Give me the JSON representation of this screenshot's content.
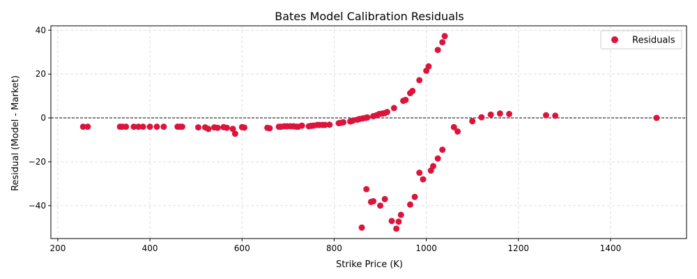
{
  "chart_data": {
    "type": "scatter",
    "title": "Bates Model Calibration Residuals",
    "xlabel": "Strike Price (K)",
    "ylabel": "Residual (Model - Market)",
    "xlim": [
      185,
      1565
    ],
    "ylim": [
      -55,
      42
    ],
    "xticks": [
      200,
      400,
      600,
      800,
      1000,
      1200,
      1400
    ],
    "yticks": [
      -40,
      -20,
      0,
      20,
      40
    ],
    "grid": true,
    "legend_position": "top-right",
    "reference_line": {
      "y": 0,
      "style": "dashed"
    },
    "colors": {
      "points": "#dc143c",
      "reference_line": "#000000",
      "grid": "#dddddd"
    },
    "series": [
      {
        "name": "Residuals",
        "points": [
          [
            255,
            -4
          ],
          [
            265,
            -4
          ],
          [
            335,
            -4
          ],
          [
            340,
            -4
          ],
          [
            348,
            -4
          ],
          [
            365,
            -4
          ],
          [
            375,
            -4
          ],
          [
            385,
            -4
          ],
          [
            400,
            -4
          ],
          [
            415,
            -4
          ],
          [
            430,
            -4
          ],
          [
            460,
            -4
          ],
          [
            465,
            -4
          ],
          [
            470,
            -4
          ],
          [
            505,
            -4.3
          ],
          [
            520,
            -4.3
          ],
          [
            527,
            -5
          ],
          [
            540,
            -4.3
          ],
          [
            547,
            -4.5
          ],
          [
            560,
            -4.2
          ],
          [
            567,
            -4.5
          ],
          [
            580,
            -5
          ],
          [
            585,
            -7.2
          ],
          [
            600,
            -4.2
          ],
          [
            605,
            -4.4
          ],
          [
            655,
            -4.5
          ],
          [
            660,
            -4.7
          ],
          [
            680,
            -4
          ],
          [
            685,
            -4
          ],
          [
            692,
            -3.8
          ],
          [
            698,
            -3.8
          ],
          [
            705,
            -3.8
          ],
          [
            712,
            -3.8
          ],
          [
            718,
            -4
          ],
          [
            722,
            -4
          ],
          [
            730,
            -3.5
          ],
          [
            745,
            -3.8
          ],
          [
            750,
            -3.6
          ],
          [
            755,
            -3.5
          ],
          [
            763,
            -3.2
          ],
          [
            768,
            -3.2
          ],
          [
            775,
            -3.2
          ],
          [
            780,
            -3.2
          ],
          [
            790,
            -3.1
          ],
          [
            810,
            -2.4
          ],
          [
            815,
            -2.2
          ],
          [
            820,
            -2
          ],
          [
            835,
            -1.6
          ],
          [
            840,
            -1.3
          ],
          [
            850,
            -0.8
          ],
          [
            855,
            -0.5
          ],
          [
            862,
            -0.2
          ],
          [
            868,
            0
          ],
          [
            872,
            0.2
          ],
          [
            885,
            0.8
          ],
          [
            892,
            1.2
          ],
          [
            898,
            1.8
          ],
          [
            905,
            2
          ],
          [
            910,
            2.2
          ],
          [
            915,
            2.7
          ],
          [
            930,
            4.5
          ],
          [
            950,
            7.8
          ],
          [
            955,
            8.2
          ],
          [
            965,
            11.3
          ],
          [
            970,
            12.3
          ],
          [
            985,
            17.2
          ],
          [
            1000,
            21.5
          ],
          [
            1005,
            23.5
          ],
          [
            1025,
            31
          ],
          [
            1035,
            34.5
          ],
          [
            1040,
            37.3
          ],
          [
            1060,
            -4.2
          ],
          [
            1068,
            -6.2
          ],
          [
            1100,
            -1.5
          ],
          [
            1120,
            0.3
          ],
          [
            1140,
            1.5
          ],
          [
            1160,
            2
          ],
          [
            1180,
            1.8
          ],
          [
            1260,
            1.2
          ],
          [
            1280,
            1
          ],
          [
            1500,
            0
          ],
          [
            1035,
            -14.5
          ],
          [
            1025,
            -18.5
          ],
          [
            1015,
            -22
          ],
          [
            1010,
            -24
          ],
          [
            985,
            -25
          ],
          [
            993,
            -28
          ],
          [
            870,
            -32.5
          ],
          [
            975,
            -36
          ],
          [
            910,
            -37
          ],
          [
            885,
            -38
          ],
          [
            880,
            -38.3
          ],
          [
            965,
            -39.5
          ],
          [
            900,
            -40
          ],
          [
            945,
            -44.2
          ],
          [
            940,
            -47.3
          ],
          [
            925,
            -47
          ],
          [
            860,
            -50
          ],
          [
            935,
            -50.5
          ]
        ]
      }
    ]
  }
}
